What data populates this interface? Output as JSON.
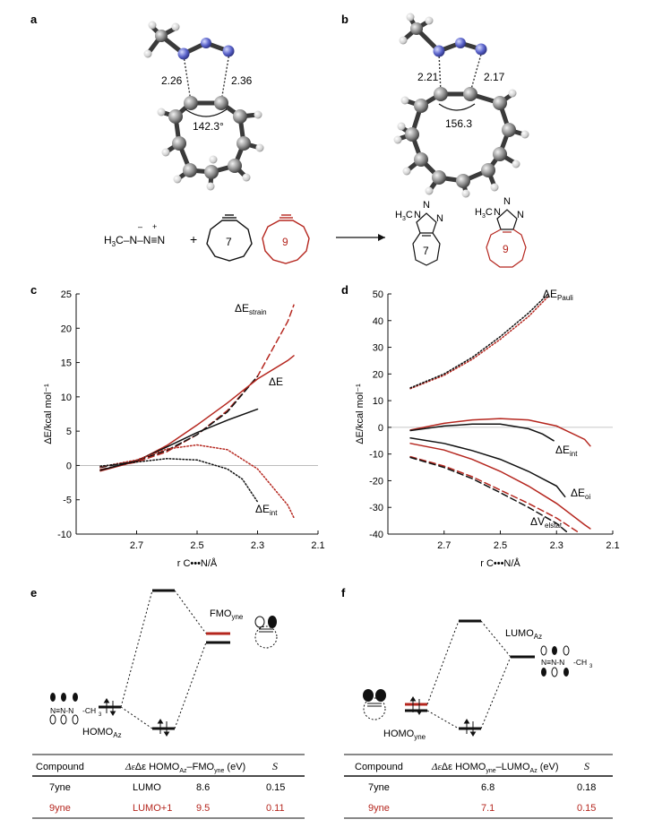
{
  "colors": {
    "black": "#111111",
    "red": "#b5261e",
    "grid": "#b3b3b3"
  },
  "panels": {
    "a": "a",
    "b": "b",
    "c": "c",
    "d": "d",
    "e": "e",
    "f": "f"
  },
  "structures": {
    "a": {
      "d1": "2.26",
      "d2": "2.36",
      "angle": "142.3°"
    },
    "b": {
      "d1": "2.21",
      "d2": "2.17",
      "angle": "156.3"
    }
  },
  "reaction": {
    "azide_left": "H",
    "azide_main": "C–N–N≡N",
    "plus": "+",
    "ring7": "7",
    "ring9": "9",
    "prod_me": "H",
    "prod_n1": "N",
    "prod_n2": "N",
    "prod_n3": "N",
    "prod7": "7",
    "prod9": "9"
  },
  "chart_data": [
    {
      "type": "line",
      "panel": "c",
      "xlabel": "r C•••N/Å",
      "ylabel": "ΔE/kcal mol⁻¹",
      "xlim": [
        2.9,
        2.1
      ],
      "ylim": [
        -10,
        25
      ],
      "xticks": [
        "2.7",
        "2.5",
        "2.3",
        "2.1"
      ],
      "yticks": [
        "25",
        "20",
        "15",
        "10",
        "5",
        "0",
        "-5",
        "-10"
      ],
      "series": [
        {
          "name": "ΔE_strain",
          "color": "red",
          "style": "dashed",
          "points": [
            [
              2.82,
              -0.6
            ],
            [
              2.7,
              0.5
            ],
            [
              2.6,
              2.0
            ],
            [
              2.5,
              4.5
            ],
            [
              2.4,
              8.0
            ],
            [
              2.3,
              13.0
            ],
            [
              2.2,
              21.0
            ],
            [
              2.18,
              23.4
            ]
          ]
        },
        {
          "name": "ΔE_strain 7yne",
          "color": "black",
          "style": "dashed",
          "points": [
            [
              2.82,
              -0.3
            ],
            [
              2.7,
              0.7
            ],
            [
              2.6,
              2.2
            ],
            [
              2.5,
              4.5
            ],
            [
              2.4,
              7.8
            ],
            [
              2.3,
              13.0
            ]
          ]
        },
        {
          "name": "ΔE",
          "color": "red",
          "style": "solid",
          "points": [
            [
              2.82,
              -0.8
            ],
            [
              2.7,
              0.6
            ],
            [
              2.6,
              2.9
            ],
            [
              2.5,
              5.9
            ],
            [
              2.4,
              9.1
            ],
            [
              2.3,
              12.6
            ],
            [
              2.2,
              15.3
            ],
            [
              2.18,
              16.0
            ]
          ]
        },
        {
          "name": "ΔE 7yne",
          "color": "black",
          "style": "solid",
          "points": [
            [
              2.82,
              -0.7
            ],
            [
              2.7,
              0.7
            ],
            [
              2.6,
              2.7
            ],
            [
              2.5,
              4.8
            ],
            [
              2.4,
              6.6
            ],
            [
              2.3,
              8.2
            ]
          ]
        },
        {
          "name": "ΔE_int",
          "color": "red",
          "style": "dotted",
          "points": [
            [
              2.82,
              -0.2
            ],
            [
              2.7,
              0.8
            ],
            [
              2.6,
              2.4
            ],
            [
              2.5,
              3.0
            ],
            [
              2.4,
              2.3
            ],
            [
              2.3,
              -0.5
            ],
            [
              2.2,
              -5.8
            ],
            [
              2.18,
              -7.6
            ]
          ]
        },
        {
          "name": "ΔE_int 7yne",
          "color": "black",
          "style": "dotted",
          "points": [
            [
              2.82,
              -0.1
            ],
            [
              2.7,
              0.5
            ],
            [
              2.6,
              1.0
            ],
            [
              2.5,
              0.8
            ],
            [
              2.4,
              -0.5
            ],
            [
              2.35,
              -2.0
            ],
            [
              2.3,
              -5.3
            ]
          ]
        }
      ],
      "labels": [
        {
          "text": "ΔE",
          "sub": "strain"
        },
        {
          "text": "ΔE",
          "sub": ""
        },
        {
          "text": "ΔE",
          "sub": "int"
        }
      ]
    },
    {
      "type": "line",
      "panel": "d",
      "xlabel": "r C•••N/Å",
      "ylabel": "ΔE/kcal mol⁻¹",
      "xlim": [
        2.9,
        2.1
      ],
      "ylim": [
        -40,
        50
      ],
      "xticks": [
        "2.7",
        "2.5",
        "2.3",
        "2.1"
      ],
      "yticks": [
        "50",
        "40",
        "30",
        "20",
        "10",
        "0",
        "-10",
        "-20",
        "-30",
        "-40"
      ],
      "series": [
        {
          "name": "ΔE_Pauli",
          "color": "red",
          "style": "dotted",
          "points": [
            [
              2.82,
              14.5
            ],
            [
              2.7,
              19.5
            ],
            [
              2.6,
              25.5
            ],
            [
              2.5,
              33.0
            ],
            [
              2.4,
              41.5
            ],
            [
              2.33,
              49.0
            ]
          ]
        },
        {
          "name": "ΔE_Pauli 7yne",
          "color": "black",
          "style": "dotted",
          "points": [
            [
              2.82,
              14.8
            ],
            [
              2.7,
              20.0
            ],
            [
              2.6,
              26.2
            ],
            [
              2.5,
              34.0
            ],
            [
              2.4,
              42.8
            ],
            [
              2.33,
              50.0
            ]
          ]
        },
        {
          "name": "ΔE",
          "color": "red",
          "style": "solid",
          "points": [
            [
              2.82,
              -1.0
            ],
            [
              2.7,
              1.5
            ],
            [
              2.6,
              2.8
            ],
            [
              2.5,
              3.3
            ],
            [
              2.4,
              2.8
            ],
            [
              2.3,
              0.5
            ],
            [
              2.2,
              -4.5
            ],
            [
              2.18,
              -7.0
            ]
          ]
        },
        {
          "name": "ΔE 7yne",
          "color": "black",
          "style": "solid",
          "points": [
            [
              2.82,
              -1.2
            ],
            [
              2.7,
              0.5
            ],
            [
              2.6,
              1.2
            ],
            [
              2.5,
              1.2
            ],
            [
              2.4,
              -0.5
            ],
            [
              2.35,
              -2.5
            ],
            [
              2.31,
              -5.0
            ]
          ]
        },
        {
          "name": "ΔE_oi",
          "color": "red",
          "style": "solid",
          "points": [
            [
              2.82,
              -6.0
            ],
            [
              2.7,
              -8.5
            ],
            [
              2.6,
              -12.0
            ],
            [
              2.5,
              -16.5
            ],
            [
              2.4,
              -22.0
            ],
            [
              2.3,
              -28.5
            ],
            [
              2.2,
              -36.5
            ],
            [
              2.18,
              -38.0
            ]
          ]
        },
        {
          "name": "ΔE_oi 7yne",
          "color": "black",
          "style": "solid",
          "points": [
            [
              2.82,
              -4.0
            ],
            [
              2.7,
              -6.0
            ],
            [
              2.6,
              -8.7
            ],
            [
              2.5,
              -12.0
            ],
            [
              2.4,
              -16.5
            ],
            [
              2.3,
              -22.0
            ],
            [
              2.27,
              -26.0
            ]
          ]
        },
        {
          "name": "ΔV_elstat",
          "color": "red",
          "style": "dashed",
          "points": [
            [
              2.82,
              -11.0
            ],
            [
              2.7,
              -14.5
            ],
            [
              2.6,
              -18.5
            ],
            [
              2.5,
              -23.5
            ],
            [
              2.4,
              -28.5
            ],
            [
              2.3,
              -34.0
            ],
            [
              2.22,
              -39.5
            ]
          ]
        },
        {
          "name": "ΔV_elstat 7yne",
          "color": "black",
          "style": "dashed",
          "points": [
            [
              2.82,
              -11.3
            ],
            [
              2.7,
              -15.0
            ],
            [
              2.6,
              -19.2
            ],
            [
              2.5,
              -24.5
            ],
            [
              2.4,
              -30.0
            ],
            [
              2.3,
              -36.0
            ],
            [
              2.26,
              -39.5
            ]
          ]
        }
      ],
      "labels": [
        {
          "text": "ΔE",
          "sub": "Pauli"
        },
        {
          "text": "ΔE",
          "sub": "int"
        },
        {
          "text": "ΔE",
          "sub": "oi"
        },
        {
          "text": "ΔV",
          "sub": "elstat"
        }
      ]
    }
  ],
  "mo": {
    "e": {
      "fmo_label": "FMO",
      "fmo_sub": "yne",
      "homo_label": "HOMO",
      "homo_sub": "Az"
    },
    "f": {
      "lumo_label": "LUMO",
      "lumo_sub": "Az",
      "homo_label": "HOMO",
      "homo_sub": "yne"
    }
  },
  "tables": {
    "e": {
      "headers": [
        "Compound",
        "Δε HOMO",
        "Az",
        "–FMO",
        "yne",
        " (eV)",
        "S"
      ],
      "rows": [
        {
          "compound": "7yne",
          "orbital": "LUMO",
          "de": "8.6",
          "s": "0.15",
          "red": false
        },
        {
          "compound": "9yne",
          "orbital": "LUMO+1",
          "de": "9.5",
          "s": "0.11",
          "red": true
        }
      ]
    },
    "f": {
      "headers": [
        "Compound",
        "Δε HOMO",
        "yne",
        "–LUMO",
        "Az",
        " (eV)",
        "S"
      ],
      "rows": [
        {
          "compound": "7yne",
          "de": "6.8",
          "s": "0.18",
          "red": false
        },
        {
          "compound": "9yne",
          "de": "7.1",
          "s": "0.15",
          "red": true
        }
      ]
    }
  }
}
